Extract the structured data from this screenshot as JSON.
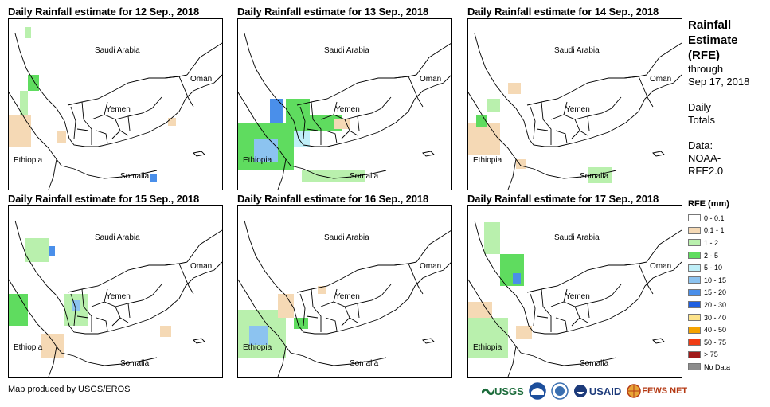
{
  "panels": [
    {
      "title": "Daily Rainfall estimate for 12 Sep., 2018"
    },
    {
      "title": "Daily Rainfall estimate for 13 Sep., 2018"
    },
    {
      "title": "Daily Rainfall estimate for 14 Sep., 2018"
    },
    {
      "title": "Daily Rainfall estimate for 15 Sep., 2018"
    },
    {
      "title": "Daily Rainfall estimate for 16 Sep., 2018"
    },
    {
      "title": "Daily Rainfall estimate for 17 Sep., 2018"
    }
  ],
  "map_labels": {
    "saudi": "Saudi Arabia",
    "oman": "Oman",
    "yemen": "Yemen",
    "ethiopia": "Ethiopia",
    "somalia": "Somalia"
  },
  "sidebar": {
    "title_line1": "Rainfall",
    "title_line2": "Estimate",
    "title_line3": "(RFE)",
    "through_line1": "through",
    "through_line2": "Sep 17, 2018",
    "totals_line1": "Daily",
    "totals_line2": "Totals",
    "data_line1": "Data:",
    "data_line2": "NOAA-",
    "data_line3": "RFE2.0"
  },
  "legend": {
    "title": "RFE (mm)",
    "items": [
      {
        "label": "0 - 0.1",
        "color": "#ffffff"
      },
      {
        "label": "0.1 - 1",
        "color": "#f5d9b5"
      },
      {
        "label": "1 - 2",
        "color": "#b9f0ad"
      },
      {
        "label": "2 - 5",
        "color": "#5fdc5f"
      },
      {
        "label": "5 - 10",
        "color": "#bfeff8"
      },
      {
        "label": "10 - 15",
        "color": "#8cc3f0"
      },
      {
        "label": "15 - 20",
        "color": "#4a8fea"
      },
      {
        "label": "20 - 30",
        "color": "#1f5fe0"
      },
      {
        "label": "30 - 40",
        "color": "#fde38a"
      },
      {
        "label": "40 - 50",
        "color": "#f5a300"
      },
      {
        "label": "50 - 75",
        "color": "#f03c14"
      },
      {
        "label": "> 75",
        "color": "#a01a1a"
      },
      {
        "label": "No Data",
        "color": "#8c8c8c"
      }
    ]
  },
  "footer": {
    "produced_by": "Map produced by USGS/EROS",
    "logo_usgs": "USGS",
    "logo_usaid": "USAID",
    "logo_fewsnet": "FEWS NET"
  }
}
